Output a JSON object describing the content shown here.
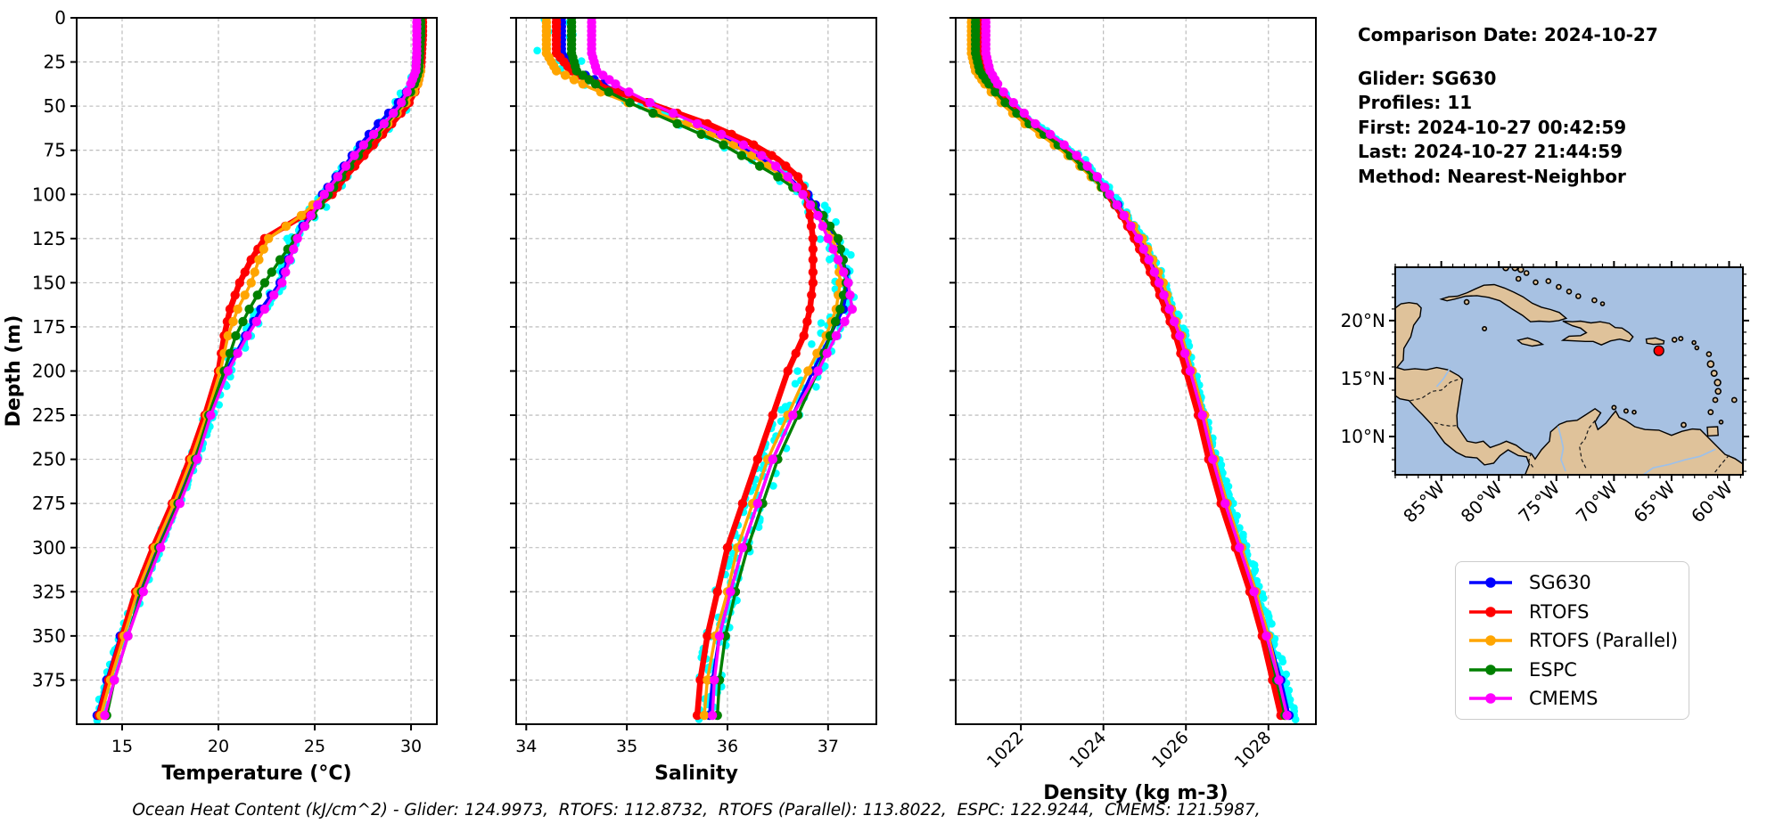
{
  "info": {
    "comparison_date": "Comparison Date: 2024-10-27",
    "glider": "Glider: SG630",
    "profiles": "Profiles: 11",
    "first": "First: 2024-10-27 00:42:59",
    "last": "Last: 2024-10-27 21:44:59",
    "method": "Method: Nearest-Neighbor"
  },
  "footer": "Ocean Heat Content (kJ/cm^2) - Glider: 124.9973,  RTOFS: 112.8732,  RTOFS (Parallel): 113.8022,  ESPC: 122.9244,  CMEMS: 121.5987,",
  "legend": {
    "items": [
      {
        "label": "SG630",
        "color": "#0000ff"
      },
      {
        "label": "RTOFS",
        "color": "#ff0000"
      },
      {
        "label": "RTOFS (Parallel)",
        "color": "#ffa500"
      },
      {
        "label": "ESPC",
        "color": "#008000"
      },
      {
        "label": "CMEMS",
        "color": "#ff00ff"
      }
    ]
  },
  "map": {
    "extent_lon": [
      -89.0,
      -58.8
    ],
    "extent_lat": [
      6.7,
      24.6
    ],
    "lon_tick_values": [
      -85,
      -80,
      -75,
      -70,
      -65,
      -60
    ],
    "lon_tick_labels": [
      "85°W",
      "80°W",
      "75°W",
      "70°W",
      "65°W",
      "60°W"
    ],
    "lat_tick_values": [
      20,
      15,
      10
    ],
    "lat_tick_labels": [
      "20°N",
      "15°N",
      "10°N"
    ],
    "marker": {
      "lon": -66.1,
      "lat": 17.4,
      "color": "#ff0000"
    },
    "ocean_color": "#a7c1e2",
    "land_color": "#dfc29a"
  },
  "chart_data": [
    {
      "type": "line",
      "title": "",
      "xlabel": "Temperature (°C)",
      "ylabel": "Depth (m)",
      "xlim": [
        12.64,
        31.34
      ],
      "ylim": [
        400,
        0
      ],
      "xticks": [
        15,
        20,
        25,
        30
      ],
      "xticklabels": [
        "15",
        "20",
        "25",
        "30"
      ],
      "yticks": [
        0,
        25,
        50,
        75,
        100,
        125,
        150,
        175,
        200,
        225,
        250,
        275,
        300,
        325,
        350,
        375
      ],
      "grid": true,
      "depths": [
        0,
        10,
        20,
        30,
        40,
        50,
        60,
        70,
        80,
        90,
        100,
        112,
        125,
        137,
        150,
        165,
        180,
        200,
        225,
        250,
        275,
        300,
        325,
        350,
        375,
        395
      ],
      "series": [
        {
          "name": "SG630",
          "color": "#0000ff",
          "values": [
            30.35,
            30.35,
            30.3,
            30.25,
            29.9,
            29.2,
            28.3,
            27.5,
            26.8,
            26.1,
            25.4,
            24.7,
            24.0,
            23.6,
            23.2,
            22.2,
            21.4,
            20.4,
            19.5,
            18.7,
            17.8,
            16.8,
            15.9,
            14.9,
            14.2,
            13.7
          ]
        },
        {
          "name": "RTOFS",
          "color": "#ff0000",
          "values": [
            30.6,
            30.6,
            30.55,
            30.5,
            30.3,
            29.8,
            29.0,
            28.2,
            27.4,
            26.6,
            25.9,
            24.4,
            22.4,
            21.7,
            21.1,
            20.6,
            20.3,
            20.0,
            19.3,
            18.5,
            17.6,
            16.6,
            15.7,
            15.0,
            14.3,
            13.8
          ]
        },
        {
          "name": "RTOFS (Parallel)",
          "color": "#ffa500",
          "values": [
            30.35,
            30.35,
            30.35,
            30.5,
            30.3,
            29.6,
            28.8,
            27.9,
            27.0,
            26.2,
            25.5,
            24.3,
            22.6,
            22.1,
            21.7,
            21.0,
            20.5,
            20.1,
            19.4,
            18.6,
            17.7,
            16.7,
            15.8,
            15.1,
            14.4,
            13.9
          ]
        },
        {
          "name": "ESPC",
          "color": "#008000",
          "values": [
            30.5,
            30.5,
            30.45,
            30.4,
            30.1,
            29.5,
            28.7,
            27.9,
            27.1,
            26.4,
            25.7,
            24.9,
            24.0,
            23.2,
            22.4,
            21.6,
            20.9,
            20.3,
            19.5,
            18.8,
            17.9,
            16.9,
            16.0,
            15.3,
            14.6,
            14.2
          ]
        },
        {
          "name": "CMEMS",
          "color": "#ff00ff",
          "values": [
            30.3,
            30.3,
            30.3,
            30.25,
            29.9,
            29.4,
            28.6,
            27.7,
            26.9,
            26.2,
            25.5,
            24.8,
            24.1,
            23.7,
            23.3,
            22.4,
            21.5,
            20.5,
            19.6,
            18.9,
            18.0,
            17.0,
            16.1,
            15.3,
            14.6,
            14.1
          ]
        }
      ],
      "scatter_series": {
        "name": "SG630 raw profiles",
        "color": "#00ffff"
      }
    },
    {
      "type": "line",
      "title": "",
      "xlabel": "Salinity",
      "ylabel": "",
      "xlim": [
        33.9,
        37.48
      ],
      "ylim": [
        400,
        0
      ],
      "xticks": [
        34,
        35,
        36,
        37
      ],
      "xticklabels": [
        "34",
        "35",
        "36",
        "37"
      ],
      "yticks": [
        0,
        25,
        50,
        75,
        100,
        125,
        150,
        175,
        200,
        225,
        250,
        275,
        300,
        325,
        350,
        375
      ],
      "grid": true,
      "depths": [
        0,
        10,
        20,
        30,
        40,
        50,
        60,
        70,
        80,
        90,
        100,
        112,
        125,
        137,
        150,
        165,
        180,
        200,
        225,
        250,
        275,
        300,
        325,
        350,
        375,
        395
      ],
      "series": [
        {
          "name": "SG630",
          "color": "#0000ff",
          "values": [
            34.35,
            34.35,
            34.35,
            34.5,
            34.85,
            35.3,
            35.7,
            36.05,
            36.35,
            36.6,
            36.8,
            36.95,
            37.08,
            37.15,
            37.2,
            37.15,
            37.02,
            36.85,
            36.65,
            36.45,
            36.3,
            36.15,
            36.03,
            35.92,
            35.85,
            35.82
          ]
        },
        {
          "name": "RTOFS",
          "color": "#ff0000",
          "values": [
            34.3,
            34.3,
            34.3,
            34.45,
            34.8,
            35.3,
            35.8,
            36.2,
            36.5,
            36.7,
            36.78,
            36.82,
            36.85,
            36.85,
            36.85,
            36.82,
            36.76,
            36.6,
            36.45,
            36.3,
            36.15,
            36.0,
            35.9,
            35.8,
            35.73,
            35.7
          ]
        },
        {
          "name": "RTOFS (Parallel)",
          "color": "#ffa500",
          "values": [
            34.2,
            34.2,
            34.2,
            34.3,
            34.65,
            35.1,
            35.6,
            36.0,
            36.3,
            36.55,
            36.75,
            36.9,
            37.05,
            37.1,
            37.12,
            37.08,
            36.98,
            36.8,
            36.6,
            36.4,
            36.25,
            36.1,
            36.0,
            35.88,
            35.8,
            35.77
          ]
        },
        {
          "name": "ESPC",
          "color": "#008000",
          "values": [
            34.45,
            34.45,
            34.45,
            34.5,
            34.75,
            35.1,
            35.5,
            35.9,
            36.2,
            36.5,
            36.75,
            36.95,
            37.1,
            37.15,
            37.18,
            37.12,
            37.02,
            36.9,
            36.7,
            36.5,
            36.35,
            36.2,
            36.08,
            35.98,
            35.92,
            35.9
          ]
        },
        {
          "name": "CMEMS",
          "color": "#ff00ff",
          "values": [
            34.65,
            34.65,
            34.65,
            34.7,
            34.95,
            35.3,
            35.7,
            36.1,
            36.4,
            36.6,
            36.75,
            36.9,
            37.0,
            37.1,
            37.2,
            37.24,
            37.08,
            36.9,
            36.65,
            36.45,
            36.3,
            36.15,
            36.03,
            35.92,
            35.87,
            35.85
          ]
        }
      ],
      "scatter_series": {
        "name": "SG630 raw profiles",
        "color": "#00ffff"
      }
    },
    {
      "type": "line",
      "title": "",
      "xlabel": "Density (kg m-3)",
      "ylabel": "",
      "xlim": [
        1020.42,
        1029.15
      ],
      "ylim": [
        400,
        0
      ],
      "xticks": [
        1022,
        1024,
        1026,
        1028
      ],
      "xticklabels": [
        "1022",
        "1024",
        "1026",
        "1028"
      ],
      "xticklabel_rotation": 45,
      "yticks": [
        0,
        25,
        50,
        75,
        100,
        125,
        150,
        175,
        200,
        225,
        250,
        275,
        300,
        325,
        350,
        375
      ],
      "grid": true,
      "depths": [
        0,
        10,
        20,
        30,
        40,
        50,
        60,
        70,
        80,
        90,
        100,
        112,
        125,
        137,
        150,
        165,
        180,
        200,
        225,
        250,
        275,
        300,
        325,
        350,
        375,
        395
      ],
      "series": [
        {
          "name": "SG630",
          "color": "#0000ff",
          "values": [
            1021.0,
            1021.0,
            1021.0,
            1021.1,
            1021.4,
            1021.8,
            1022.3,
            1022.9,
            1023.4,
            1023.85,
            1024.15,
            1024.55,
            1024.9,
            1025.15,
            1025.4,
            1025.65,
            1025.9,
            1026.15,
            1026.45,
            1026.7,
            1027.0,
            1027.35,
            1027.7,
            1028.0,
            1028.3,
            1028.5
          ]
        },
        {
          "name": "RTOFS",
          "color": "#ff0000",
          "values": [
            1020.95,
            1020.95,
            1020.95,
            1021.05,
            1021.35,
            1021.75,
            1022.25,
            1022.85,
            1023.35,
            1023.8,
            1024.1,
            1024.45,
            1024.75,
            1025.0,
            1025.25,
            1025.5,
            1025.75,
            1026.0,
            1026.3,
            1026.55,
            1026.85,
            1027.2,
            1027.55,
            1027.85,
            1028.1,
            1028.3
          ]
        },
        {
          "name": "RTOFS (Parallel)",
          "color": "#ffa500",
          "values": [
            1020.8,
            1020.8,
            1020.8,
            1020.9,
            1021.2,
            1021.6,
            1022.1,
            1022.7,
            1023.25,
            1023.7,
            1024.1,
            1024.55,
            1024.95,
            1025.2,
            1025.45,
            1025.65,
            1025.9,
            1026.15,
            1026.45,
            1026.7,
            1027.0,
            1027.35,
            1027.7,
            1028.0,
            1028.25,
            1028.4
          ]
        },
        {
          "name": "ESPC",
          "color": "#008000",
          "values": [
            1020.9,
            1020.9,
            1020.9,
            1021.0,
            1021.3,
            1021.7,
            1022.2,
            1022.8,
            1023.3,
            1023.75,
            1024.1,
            1024.5,
            1024.85,
            1025.1,
            1025.35,
            1025.6,
            1025.85,
            1026.1,
            1026.4,
            1026.65,
            1026.95,
            1027.3,
            1027.65,
            1027.95,
            1028.2,
            1028.4
          ]
        },
        {
          "name": "CMEMS",
          "color": "#ff00ff",
          "values": [
            1021.15,
            1021.15,
            1021.15,
            1021.25,
            1021.5,
            1021.9,
            1022.35,
            1022.95,
            1023.45,
            1023.85,
            1024.15,
            1024.5,
            1024.85,
            1025.1,
            1025.35,
            1025.6,
            1025.85,
            1026.1,
            1026.4,
            1026.65,
            1026.95,
            1027.3,
            1027.65,
            1027.95,
            1028.25,
            1028.45
          ]
        }
      ],
      "scatter_series": {
        "name": "SG630 raw profiles",
        "color": "#00ffff"
      }
    }
  ]
}
